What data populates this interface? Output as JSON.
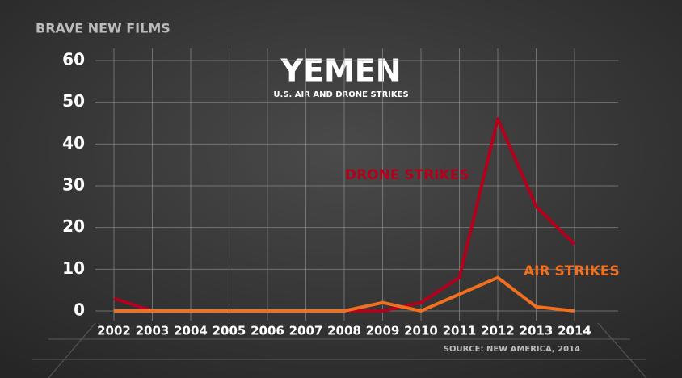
{
  "chart_data": {
    "type": "line",
    "title": "YEMEN",
    "subtitle": "U.S. AIR AND DRONE STRIKES",
    "brand": "BRAVE NEW FILMS",
    "source": "SOURCE:  NEW AMERICA, 2014",
    "categories": [
      "2002",
      "2003",
      "2004",
      "2005",
      "2006",
      "2007",
      "2008",
      "2009",
      "2010",
      "2011",
      "2012",
      "2013",
      "2014"
    ],
    "series": [
      {
        "name": "DRONE STRIKES",
        "color": "#b3001c",
        "values": [
          3,
          0,
          0,
          0,
          0,
          0,
          0,
          0,
          2,
          8,
          46,
          25,
          16
        ]
      },
      {
        "name": "AIR STRIKES",
        "color": "#f07020",
        "values": [
          0,
          0,
          0,
          0,
          0,
          0,
          0,
          2,
          0,
          4,
          8,
          1,
          0
        ]
      }
    ],
    "ylim": [
      0,
      60
    ],
    "yticks": [
      0,
      10,
      20,
      30,
      40,
      50,
      60
    ],
    "grid": true
  }
}
